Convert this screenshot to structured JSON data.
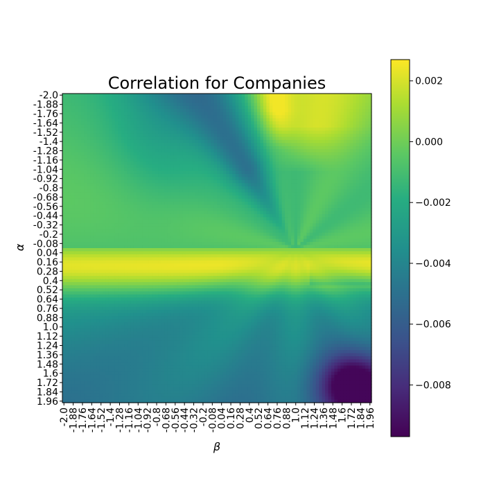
{
  "chart_data": {
    "type": "heatmap",
    "title": "Correlation for Companies",
    "xlabel": "β",
    "ylabel": "α",
    "x_range": [
      -2.0,
      1.96
    ],
    "y_range": [
      -2.0,
      1.96
    ],
    "grid_step": 0.04,
    "x_tick_labels": [
      "-2.0",
      "-1.88",
      "-1.76",
      "-1.64",
      "-1.52",
      "-1.4",
      "-1.28",
      "-1.16",
      "-1.04",
      "-0.92",
      "-0.8",
      "-0.68",
      "-0.56",
      "-0.44",
      "-0.32",
      "-0.2",
      "-0.08",
      "0.04",
      "0.16",
      "0.28",
      "0.4",
      "0.52",
      "0.64",
      "0.76",
      "0.88",
      "1.0",
      "1.12",
      "1.24",
      "1.36",
      "1.48",
      "1.6",
      "1.72",
      "1.84",
      "1.96"
    ],
    "y_tick_labels": [
      "-2.0",
      "-1.88",
      "-1.76",
      "-1.64",
      "-1.52",
      "-1.4",
      "-1.28",
      "-1.16",
      "-1.04",
      "-0.92",
      "-0.8",
      "-0.68",
      "-0.56",
      "-0.44",
      "-0.32",
      "-0.2",
      "-0.08",
      "0.04",
      "0.16",
      "0.28",
      "0.4",
      "0.52",
      "0.64",
      "0.76",
      "0.88",
      "1.0",
      "1.12",
      "1.24",
      "1.36",
      "1.48",
      "1.6",
      "1.72",
      "1.84",
      "1.96"
    ],
    "colorbar": {
      "min": -0.0097,
      "max": 0.0027,
      "ticks": [
        0.002,
        0.0,
        -0.002,
        -0.004,
        -0.006,
        -0.008
      ],
      "tick_labels": [
        "0.002",
        "0.000",
        "−0.002",
        "−0.004",
        "−0.006",
        "−0.008"
      ],
      "colormap": "viridis"
    },
    "description_of_field": "Values near 0 (green) around the upper-left; a light yellow band (~0.002) for alpha between 0 and 0.5 across all beta; yellow region (~0.0015-0.0025) at top right for alpha < -1.5 and beta between 0.9 and 1.6; dark blue ridge (~-0.005) from top center toward (alpha 0, beta 1); purple (~-0.009) at bottom right for alpha > 1.3, beta > 1.2; teal (~-0.003) elsewhere in lower half."
  }
}
